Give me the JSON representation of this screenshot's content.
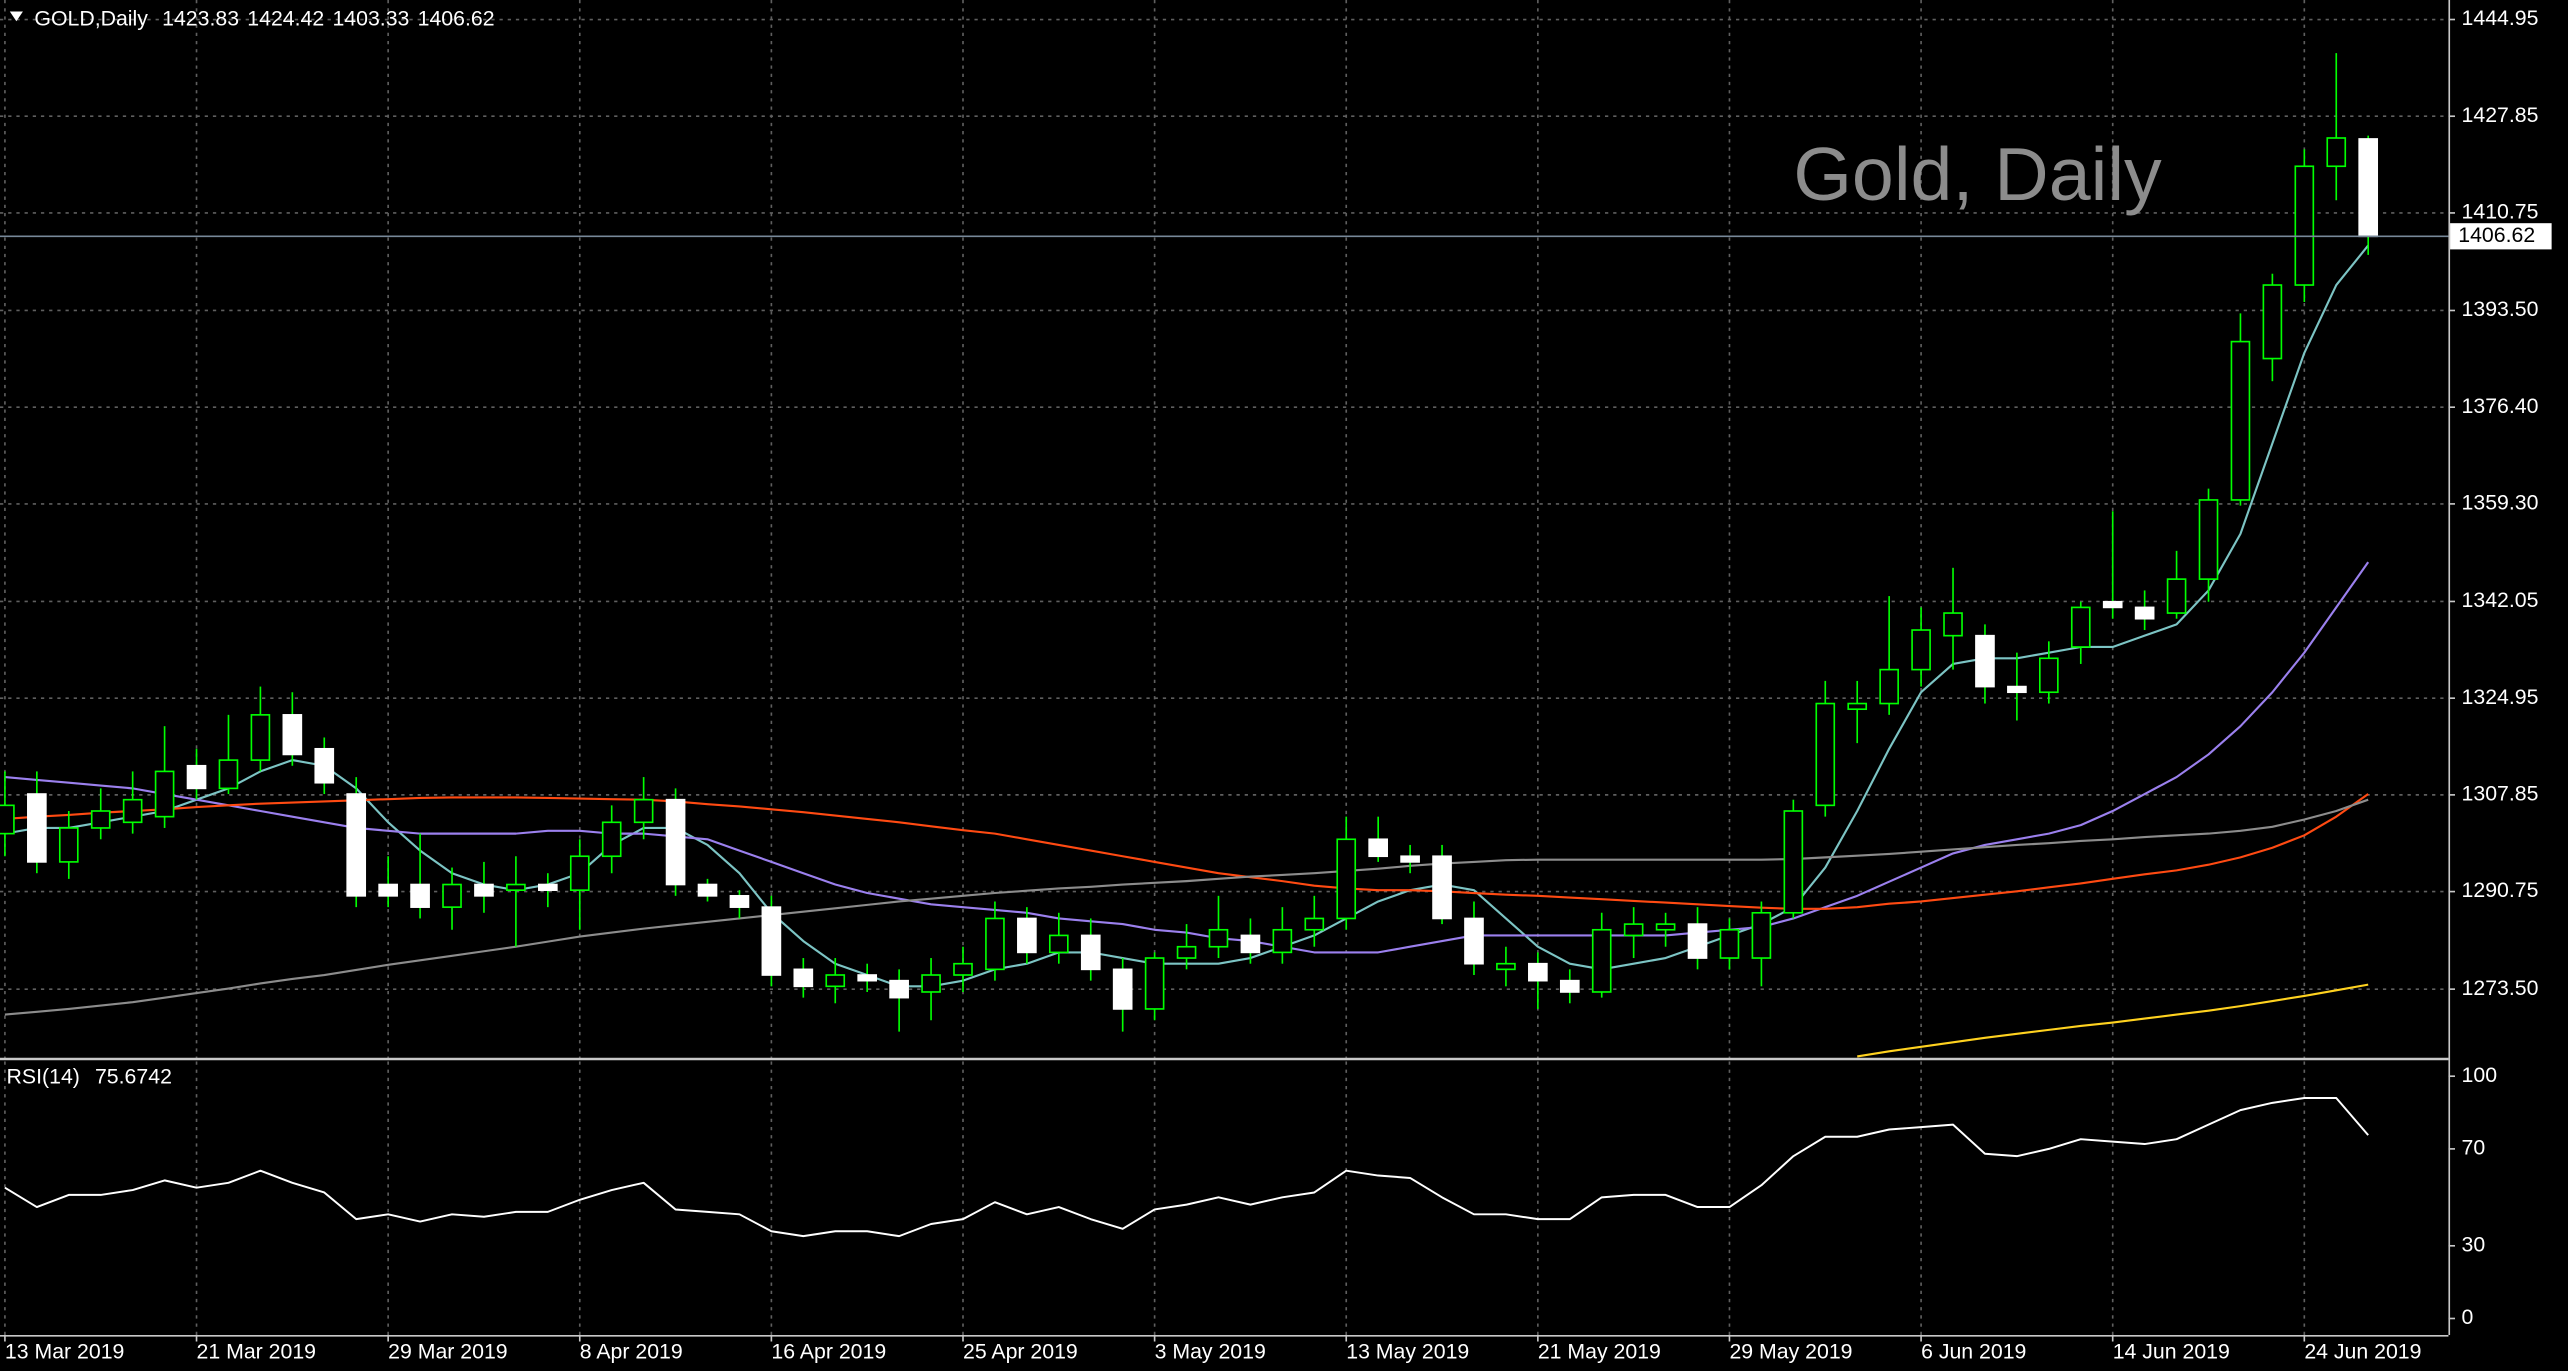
{
  "chart_data": [
    {
      "type": "candlestick",
      "title": "GOLD,Daily",
      "watermark": "Gold, Daily",
      "categories": [
        "13 Mar 2019",
        null,
        null,
        null,
        null,
        null,
        "21 Mar 2019",
        null,
        null,
        null,
        null,
        null,
        "29 Mar 2019",
        null,
        null,
        null,
        null,
        null,
        "8 Apr 2019",
        null,
        null,
        null,
        null,
        null,
        "16 Apr 2019",
        null,
        null,
        null,
        null,
        null,
        "25 Apr 2019",
        null,
        null,
        null,
        null,
        null,
        "3 May 2019",
        null,
        null,
        null,
        null,
        null,
        "13 May 2019",
        null,
        null,
        null,
        null,
        null,
        "21 May 2019",
        null,
        null,
        null,
        null,
        null,
        "29 May 2019",
        null,
        null,
        null,
        null,
        null,
        "6 Jun 2019",
        null,
        null,
        null,
        null,
        null,
        "14 Jun 2019",
        null,
        null,
        null,
        null,
        null,
        "24 Jun 2019",
        null,
        null
      ],
      "ohlc": [
        [
          1301,
          1312,
          1297,
          1306
        ],
        [
          1308,
          1312,
          1294,
          1296
        ],
        [
          1296,
          1305,
          1293,
          1302
        ],
        [
          1302,
          1309,
          1300,
          1305
        ],
        [
          1303,
          1312,
          1301,
          1307
        ],
        [
          1304,
          1320,
          1302,
          1312
        ],
        [
          1313,
          1316,
          1307,
          1309
        ],
        [
          1309,
          1322,
          1308,
          1314
        ],
        [
          1314,
          1327,
          1312,
          1322
        ],
        [
          1322,
          1326,
          1313,
          1315
        ],
        [
          1316,
          1318,
          1308,
          1310
        ],
        [
          1308,
          1311,
          1288,
          1290
        ],
        [
          1292,
          1297,
          1288,
          1290
        ],
        [
          1292,
          1301,
          1286,
          1288
        ],
        [
          1288,
          1295,
          1284,
          1292
        ],
        [
          1292,
          1296,
          1287,
          1290
        ],
        [
          1291,
          1297,
          1281,
          1292
        ],
        [
          1292,
          1294,
          1288,
          1291
        ],
        [
          1291,
          1300,
          1284,
          1297
        ],
        [
          1297,
          1306,
          1294,
          1303
        ],
        [
          1303,
          1311,
          1300,
          1307
        ],
        [
          1307,
          1309,
          1290,
          1292
        ],
        [
          1292,
          1293,
          1289,
          1290
        ],
        [
          1290,
          1291,
          1286,
          1288
        ],
        [
          1288,
          1290,
          1274,
          1276
        ],
        [
          1277,
          1279,
          1272,
          1274
        ],
        [
          1274,
          1279,
          1271,
          1276
        ],
        [
          1276,
          1278,
          1273,
          1275
        ],
        [
          1275,
          1277,
          1266,
          1272
        ],
        [
          1273,
          1279,
          1268,
          1276
        ],
        [
          1276,
          1281,
          1273,
          1278
        ],
        [
          1277,
          1289,
          1275,
          1286
        ],
        [
          1286,
          1288,
          1278,
          1280
        ],
        [
          1280,
          1287,
          1278,
          1283
        ],
        [
          1283,
          1286,
          1275,
          1277
        ],
        [
          1277,
          1279,
          1266,
          1270
        ],
        [
          1270,
          1280,
          1268,
          1279
        ],
        [
          1279,
          1285,
          1277,
          1281
        ],
        [
          1281,
          1290,
          1279,
          1284
        ],
        [
          1283,
          1286,
          1278,
          1280
        ],
        [
          1280,
          1288,
          1278,
          1284
        ],
        [
          1284,
          1290,
          1281,
          1286
        ],
        [
          1286,
          1304,
          1284,
          1300
        ],
        [
          1300,
          1304,
          1296,
          1297
        ],
        [
          1297,
          1299,
          1294,
          1296
        ],
        [
          1297,
          1299,
          1285,
          1286
        ],
        [
          1286,
          1289,
          1276,
          1278
        ],
        [
          1277,
          1281,
          1274,
          1278
        ],
        [
          1278,
          1280,
          1270,
          1275
        ],
        [
          1275,
          1277,
          1271,
          1273
        ],
        [
          1273,
          1287,
          1272,
          1284
        ],
        [
          1283,
          1288,
          1279,
          1285
        ],
        [
          1284,
          1287,
          1281,
          1285
        ],
        [
          1285,
          1288,
          1277,
          1279
        ],
        [
          1279,
          1286,
          1277,
          1284
        ],
        [
          1279,
          1289,
          1274,
          1287
        ],
        [
          1287,
          1307,
          1286,
          1305
        ],
        [
          1306,
          1328,
          1304,
          1324
        ],
        [
          1323,
          1328,
          1317,
          1324
        ],
        [
          1324,
          1343,
          1322,
          1330
        ],
        [
          1330,
          1341,
          1327,
          1337
        ],
        [
          1336,
          1348,
          1330,
          1340
        ],
        [
          1336,
          1338,
          1324,
          1327
        ],
        [
          1327,
          1333,
          1321,
          1326
        ],
        [
          1326,
          1335,
          1324,
          1332
        ],
        [
          1334,
          1342,
          1331,
          1341
        ],
        [
          1342,
          1358,
          1339,
          1341
        ],
        [
          1341,
          1344,
          1337,
          1339
        ],
        [
          1340,
          1351,
          1339,
          1346
        ],
        [
          1346,
          1362,
          1342,
          1360
        ],
        [
          1360,
          1393,
          1359,
          1388
        ],
        [
          1385,
          1400,
          1381,
          1398
        ],
        [
          1398,
          1422,
          1395,
          1419
        ],
        [
          1419,
          1439,
          1413,
          1424
        ],
        [
          1423.83,
          1424.42,
          1403.33,
          1406.62
        ]
      ],
      "up_color": "#00ff00",
      "down_color": "#ffffff",
      "wick_color": "#00ff00",
      "series": [
        {
          "color": "#7cc4c4",
          "values": [
            1301,
            1302,
            1302,
            1303,
            1304,
            1305,
            1307,
            1309,
            1312,
            1314,
            1313,
            1309,
            1303,
            1298,
            1294,
            1292,
            1291,
            1292,
            1294,
            1299,
            1302,
            1302,
            1299,
            1294,
            1287,
            1282,
            1278,
            1276,
            1274,
            1274,
            1275,
            1277,
            1278,
            1280,
            1280,
            1279,
            1278,
            1278,
            1278,
            1279,
            1281,
            1283,
            1286,
            1289,
            1291,
            1292,
            1291,
            1286,
            1281,
            1278,
            1277,
            1278,
            1279,
            1281,
            1283,
            1285,
            1288,
            1295,
            1305,
            1316,
            1326,
            1331,
            1332,
            1332,
            1333,
            1334,
            1334,
            1336,
            1338,
            1344,
            1354,
            1370,
            1386,
            1398,
            1405
          ]
        },
        {
          "color": "#9b80ee",
          "values": [
            1311,
            1310.5,
            1310,
            1309.5,
            1309,
            1308,
            1307,
            1306,
            1305,
            1304,
            1303,
            1302,
            1301.5,
            1301,
            1301,
            1301,
            1301,
            1301.5,
            1301.5,
            1301,
            1301,
            1300.5,
            1300,
            1298,
            1296,
            1294,
            1292,
            1290.5,
            1289.5,
            1288.5,
            1288,
            1287.5,
            1287,
            1286,
            1285.5,
            1285,
            1284,
            1283.5,
            1282.5,
            1282,
            1281,
            1280,
            1280,
            1280,
            1281,
            1282,
            1283,
            1283,
            1283,
            1283,
            1283,
            1283,
            1283,
            1283.5,
            1284,
            1284.5,
            1286,
            1288,
            1290,
            1292.5,
            1295,
            1297.5,
            1299,
            1300,
            1301,
            1302.5,
            1305,
            1308,
            1311,
            1315,
            1320,
            1326,
            1333,
            1341,
            1349
          ]
        },
        {
          "color": "#ff4a12",
          "values": [
            1303.6,
            1304,
            1304.3,
            1304.7,
            1305,
            1305.3,
            1305.7,
            1306,
            1306.3,
            1306.5,
            1306.7,
            1306.9,
            1307.1,
            1307.3,
            1307.4,
            1307.4,
            1307.4,
            1307.3,
            1307.2,
            1307.1,
            1307,
            1306.7,
            1306.2,
            1305.8,
            1305.3,
            1304.8,
            1304.2,
            1303.6,
            1303,
            1302.3,
            1301.6,
            1301,
            1300,
            1299,
            1298,
            1297,
            1296,
            1295,
            1294,
            1293.3,
            1292.6,
            1291.8,
            1291.3,
            1291,
            1291,
            1290.8,
            1290.5,
            1290.2,
            1290,
            1289.7,
            1289.4,
            1289.1,
            1288.8,
            1288.5,
            1288.2,
            1287.9,
            1287.7,
            1287.7,
            1288,
            1288.6,
            1289,
            1289.6,
            1290.2,
            1290.8,
            1291.5,
            1292.2,
            1293,
            1293.8,
            1294.5,
            1295.5,
            1296.8,
            1298.5,
            1300.7,
            1304,
            1308
          ]
        },
        {
          "color": "#8c8c8c",
          "values": [
            1269,
            1269.5,
            1270,
            1270.6,
            1271.2,
            1272,
            1272.8,
            1273.6,
            1274.5,
            1275.3,
            1276,
            1276.9,
            1277.8,
            1278.6,
            1279.4,
            1280.2,
            1281,
            1281.9,
            1282.8,
            1283.5,
            1284.2,
            1284.8,
            1285.4,
            1286,
            1286.6,
            1287.2,
            1287.8,
            1288.4,
            1289,
            1289.5,
            1290,
            1290.5,
            1290.9,
            1291.3,
            1291.6,
            1292,
            1292.3,
            1292.6,
            1293,
            1293.4,
            1293.7,
            1294,
            1294.4,
            1294.8,
            1295.3,
            1295.7,
            1296,
            1296.3,
            1296.4,
            1296.4,
            1296.4,
            1296.4,
            1296.4,
            1296.4,
            1296.4,
            1296.4,
            1296.5,
            1296.8,
            1297.1,
            1297.4,
            1297.8,
            1298.2,
            1298.6,
            1299,
            1299.3,
            1299.7,
            1300,
            1300.4,
            1300.7,
            1301,
            1301.5,
            1302.2,
            1303.5,
            1305,
            1307
          ]
        },
        {
          "color": "#ffd21f",
          "values": [
            null,
            null,
            null,
            null,
            null,
            null,
            null,
            null,
            null,
            null,
            null,
            null,
            null,
            null,
            null,
            null,
            null,
            null,
            null,
            null,
            null,
            null,
            null,
            null,
            null,
            null,
            null,
            null,
            null,
            null,
            null,
            null,
            null,
            null,
            null,
            null,
            null,
            null,
            null,
            null,
            null,
            null,
            null,
            null,
            null,
            null,
            null,
            null,
            null,
            null,
            null,
            null,
            null,
            null,
            null,
            null,
            null,
            null,
            1261.6,
            1262.5,
            1263.3,
            1264.1,
            1264.9,
            1265.6,
            1266.3,
            1267,
            1267.6,
            1268.3,
            1269,
            1269.7,
            1270.5,
            1271.4,
            1272.3,
            1273.3,
            1274.3
          ]
        }
      ],
      "ylim": [
        1261.3,
        1448.4
      ],
      "yticks": [
        1444.95,
        1427.85,
        1410.75,
        {
          "value": 1393.5,
          "label": "1393.50"
        },
        {
          "value": 1376.4,
          "label": "1376.40"
        },
        {
          "value": 1359.3,
          "label": "1359.30"
        },
        1342.05,
        1324.95,
        1307.85,
        1290.75,
        {
          "value": 1273.5,
          "label": "1273.50"
        }
      ],
      "grid": true
    },
    {
      "type": "line",
      "title": "RSI(14)",
      "color": "#ffffff",
      "values": [
        54,
        46,
        51,
        51,
        53,
        57,
        54,
        56,
        61,
        56,
        52,
        41,
        43,
        40,
        43,
        42,
        44,
        44,
        49,
        53,
        56,
        45,
        44,
        43,
        36,
        34,
        36,
        36,
        34,
        39,
        41,
        48,
        43,
        46,
        41,
        37,
        45,
        47,
        50,
        47,
        50,
        52,
        61,
        59,
        58,
        50,
        43,
        43,
        41,
        41,
        50,
        51,
        51,
        46,
        46,
        55,
        67,
        75,
        75,
        78,
        79,
        80,
        68,
        67,
        70,
        74,
        73,
        72,
        74,
        80,
        86,
        89,
        91,
        91,
        75.6742
      ],
      "ylim": [
        -6.8,
        106.1
      ],
      "yticks": [
        0,
        30,
        70,
        100
      ]
    }
  ]
}
